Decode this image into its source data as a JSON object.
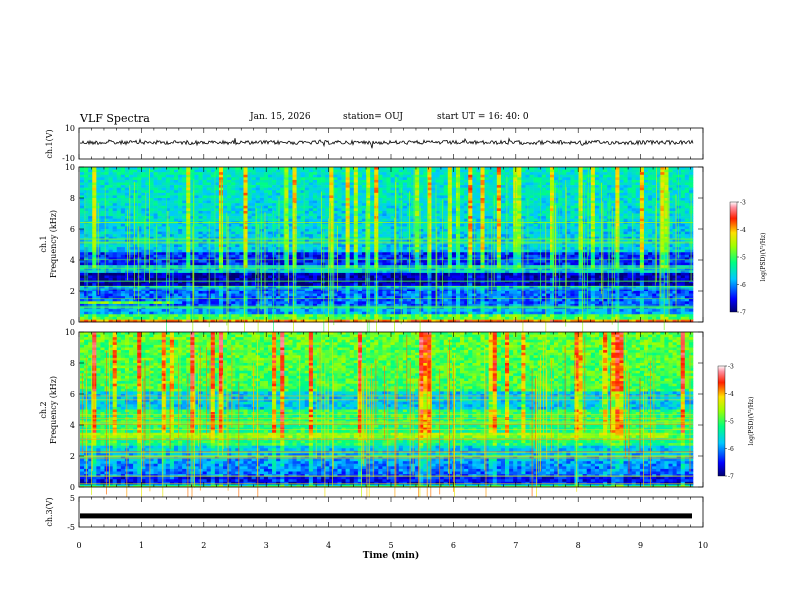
{
  "header": {
    "title": "VLF Spectra",
    "date": "Jan. 15, 2026",
    "station": "station= OUJ",
    "start_ut": "start  UT  =   16: 40: 0"
  },
  "chart_data": [
    {
      "type": "line",
      "name": "ch.1 waveform",
      "ylabel": "ch.1(V)",
      "ylim": [
        -10,
        10
      ],
      "yticks": [
        "10",
        "-10"
      ],
      "xlim": [
        0,
        10
      ],
      "description_level": 0
    },
    {
      "type": "heatmap",
      "name": "ch.1 spectrogram",
      "ylabel": "ch.1\nFrequency  (kHz)",
      "ylabel_top": "ch.1",
      "ylabel_bottom": "Frequency  (kHz)",
      "ylim": [
        0,
        10
      ],
      "yticks": [
        "0",
        "2",
        "4",
        "6",
        "8",
        "10"
      ],
      "xlim": [
        0,
        10
      ],
      "colorbar": {
        "label": "log(PSD)(V²/Hz)",
        "range": [
          -7,
          -3
        ],
        "ticks": [
          "-3",
          "-4",
          "-5",
          "-6",
          "-7"
        ]
      }
    },
    {
      "type": "heatmap",
      "name": "ch.2 spectrogram",
      "ylabel_top": "ch.2",
      "ylabel_bottom": "Frequency  (kHz)",
      "ylim": [
        0,
        10
      ],
      "yticks": [
        "0",
        "2",
        "4",
        "6",
        "8",
        "10"
      ],
      "xlim": [
        0,
        10
      ],
      "colorbar": {
        "label": "log(PSD)(V²/Hz)",
        "range": [
          -7,
          -3
        ],
        "ticks": [
          "-3",
          "-4",
          "-5",
          "-6",
          "-7"
        ]
      }
    },
    {
      "type": "line",
      "name": "ch.3 waveform",
      "ylabel": "ch.3(V)",
      "ylim": [
        -5,
        5
      ],
      "yticks": [
        "5",
        "-5"
      ],
      "xlim": [
        0,
        10
      ],
      "xlabel": "Time  (min)",
      "xticks": [
        "0",
        "1",
        "2",
        "3",
        "4",
        "5",
        "6",
        "7",
        "8",
        "9",
        "10"
      ],
      "description_level": -1.3
    }
  ],
  "colors": {
    "ch1_base": "#0a2ad8",
    "ch2_base": "#22e07a",
    "frame": "#000000"
  }
}
